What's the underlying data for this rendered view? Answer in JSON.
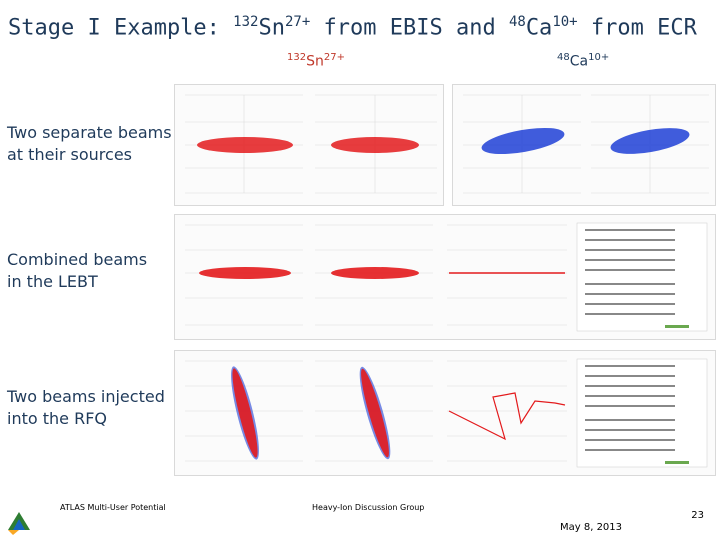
{
  "slide": {
    "title": {
      "prefix": "Stage I Example: ",
      "sn_mass": "132",
      "sn_sym": "Sn",
      "sn_charge": "27+",
      "mid": " from EBIS and ",
      "ca_mass": "48",
      "ca_sym": "Ca",
      "ca_charge": "10+",
      "suffix": " from ECR"
    },
    "label_sn": {
      "mass": "132",
      "sym": "Sn",
      "charge": "27+"
    },
    "label_ca": {
      "mass": "48",
      "sym": "Ca",
      "charge": "10+"
    },
    "rows": [
      {
        "line1": "Two separate beams",
        "line2": "at their sources"
      },
      {
        "line1": "Combined beams",
        "line2": "in the LEBT"
      },
      {
        "line1": "Two beams injected",
        "line2": "into the RFQ"
      }
    ],
    "footer_left": "ATLAS Multi-User Potential",
    "footer_center": "Heavy-Ion Discussion Group",
    "date": "May 8, 2013",
    "page": "23"
  },
  "colors": {
    "title": "#1f3a5a",
    "sn_beam": "#e31a1c",
    "ca_beam": "#1f3fd6",
    "grid": "#dcdcdc",
    "text_green": "#2e8b57"
  }
}
